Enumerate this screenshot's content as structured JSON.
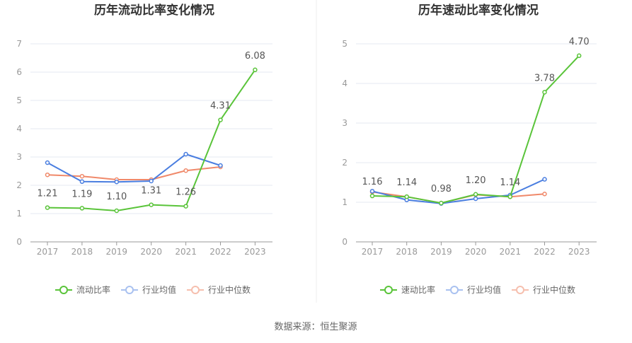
{
  "chart_data": [
    {
      "type": "line",
      "title": "历年流动比率变化情况",
      "x": [
        "2017",
        "2018",
        "2019",
        "2020",
        "2021",
        "2022",
        "2023"
      ],
      "ylim": [
        0,
        7
      ],
      "yticks": [
        0,
        1,
        2,
        3,
        4,
        5,
        6,
        7
      ],
      "grid": true,
      "legend_position": "bottom",
      "series": [
        {
          "name": "流动比率",
          "color": "#5ac43a",
          "values": [
            1.21,
            1.19,
            1.1,
            1.31,
            1.26,
            4.31,
            6.08
          ],
          "labels": [
            "1.21",
            "1.19",
            "1.10",
            "1.31",
            "1.26",
            "4.31",
            "6.08"
          ]
        },
        {
          "name": "行业均值",
          "color": "#4a7ee0",
          "values": [
            2.8,
            2.13,
            2.12,
            2.15,
            3.1,
            2.7,
            null
          ]
        },
        {
          "name": "行业中位数",
          "color": "#f0896a",
          "values": [
            2.37,
            2.32,
            2.2,
            2.2,
            2.52,
            2.65,
            null
          ]
        }
      ]
    },
    {
      "type": "line",
      "title": "历年速动比率变化情况",
      "x": [
        "2017",
        "2018",
        "2019",
        "2020",
        "2021",
        "2022",
        "2023"
      ],
      "ylim": [
        0,
        5
      ],
      "yticks": [
        0,
        1,
        2,
        3,
        4,
        5
      ],
      "grid": true,
      "legend_position": "bottom",
      "series": [
        {
          "name": "速动比率",
          "color": "#5ac43a",
          "values": [
            1.16,
            1.14,
            0.98,
            1.2,
            1.14,
            3.78,
            4.7
          ],
          "labels": [
            "1.16",
            "1.14",
            "0.98",
            "1.20",
            "1.14",
            "3.78",
            "4.70"
          ]
        },
        {
          "name": "行业均值",
          "color": "#4a7ee0",
          "values": [
            1.28,
            1.06,
            0.97,
            1.09,
            1.18,
            1.58,
            null
          ]
        },
        {
          "name": "行业中位数",
          "color": "#f0896a",
          "values": [
            1.26,
            1.14,
            0.98,
            1.19,
            1.14,
            1.21,
            null
          ]
        }
      ]
    }
  ],
  "footer": {
    "source": "数据来源：恒生聚源"
  }
}
